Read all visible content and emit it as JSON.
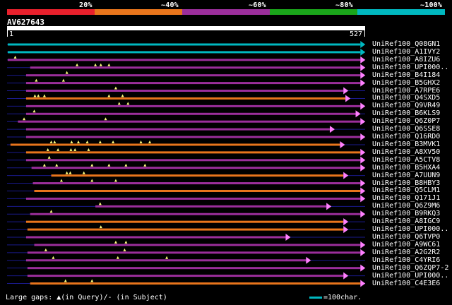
{
  "legend": {
    "labels": [
      "20%",
      "~40%",
      "~60%",
      "~80%",
      "~100%"
    ],
    "colors": [
      "#e8202c",
      "#e8751c",
      "#9b2e9b",
      "#1aa51a",
      "#00b8c0"
    ]
  },
  "query": {
    "id": "AV627643",
    "start": "1",
    "end": "527"
  },
  "colors": {
    "cyan": "#00b8c0",
    "purple": "#9b2e9b",
    "orange": "#e8751c",
    "gap_line": "#1a1a8c",
    "marker": "#ffff80",
    "arrow": "#ff80ff"
  },
  "hits": [
    {
      "label": "UniRef100_Q08GN1",
      "c": "cyan",
      "s": 1,
      "e": 520
    },
    {
      "label": "UniRef100_A1IVY2",
      "c": "cyan",
      "s": 1,
      "e": 520
    },
    {
      "label": "UniRef100_A8IZU6",
      "c": "purple",
      "s": 1,
      "e": 520,
      "m": [
        12
      ]
    },
    {
      "label": "UniRef100_UPI000..",
      "c": "purple",
      "s": 34,
      "e": 520,
      "m": [
        130,
        138,
        150,
        103
      ]
    },
    {
      "label": "UniRef100_B4I184",
      "c": "purple",
      "s": 28,
      "e": 520,
      "m": [
        88
      ]
    },
    {
      "label": "UniRef100_B5GHX2",
      "c": "purple",
      "s": 28,
      "e": 520,
      "m": [
        43,
        83
      ]
    },
    {
      "label": "UniRef100_A7RPE6",
      "c": "purple",
      "s": 28,
      "e": 495,
      "m": [
        160
      ]
    },
    {
      "label": "UniRef100_Q4SXD5",
      "c": "orange",
      "s": 28,
      "e": 498,
      "m": [
        41,
        46,
        55,
        150,
        170
      ]
    },
    {
      "label": "UniRef100_Q9VR49",
      "c": "purple",
      "s": 28,
      "e": 520,
      "m": [
        165,
        178
      ]
    },
    {
      "label": "UniRef100_B6KLS9",
      "c": "purple",
      "s": 28,
      "e": 513,
      "m": [
        40
      ]
    },
    {
      "label": "UniRef100_Q6Z0P7",
      "c": "purple",
      "s": 16,
      "e": 520,
      "m": [
        25,
        145
      ]
    },
    {
      "label": "UniRef100_Q6SSE8",
      "c": "purple",
      "s": 28,
      "e": 475
    },
    {
      "label": "UniRef100_Q16RD0",
      "c": "purple",
      "s": 28,
      "e": 520
    },
    {
      "label": "UniRef100_B3MVK1",
      "c": "orange",
      "s": 5,
      "e": 490,
      "m": [
        65,
        70,
        95,
        105,
        118,
        137,
        156,
        197,
        210
      ]
    },
    {
      "label": "UniRef100_A8XV50",
      "c": "orange",
      "s": 28,
      "e": 520,
      "m": [
        60,
        75,
        94,
        100,
        120
      ]
    },
    {
      "label": "UniRef100_A5CTV8",
      "c": "purple",
      "s": 28,
      "e": 520,
      "m": [
        62
      ]
    },
    {
      "label": "UniRef100_B5HXA4",
      "c": "purple",
      "s": 36,
      "e": 520,
      "m": [
        55,
        73,
        125,
        150,
        175,
        203
      ]
    },
    {
      "label": "UniRef100_A7UUN9",
      "c": "orange",
      "s": 65,
      "e": 495,
      "m": [
        88,
        93,
        113
      ]
    },
    {
      "label": "UniRef100_B8HBY3",
      "c": "purple",
      "s": 38,
      "e": 520,
      "m": [
        80,
        125,
        160
      ]
    },
    {
      "label": "UniRef100_Q5CLM1",
      "c": "orange",
      "s": 40,
      "e": 520
    },
    {
      "label": "UniRef100_Q171J1",
      "c": "purple",
      "s": 28,
      "e": 520
    },
    {
      "label": "UniRef100_Q6Z9M6",
      "c": "purple",
      "s": 130,
      "e": 470,
      "m": [
        137
      ]
    },
    {
      "label": "UniRef100_B9RKQ3",
      "c": "purple",
      "s": 34,
      "e": 520,
      "m": [
        65
      ]
    },
    {
      "label": "UniRef100_A8IGC9",
      "c": "orange",
      "s": 28,
      "e": 495
    },
    {
      "label": "UniRef100_UPI000..",
      "c": "orange",
      "s": 30,
      "e": 495,
      "m": [
        138
      ]
    },
    {
      "label": "UniRef100_Q6TVP0",
      "c": "purple",
      "s": 28,
      "e": 410
    },
    {
      "label": "UniRef100_A9WC61",
      "c": "purple",
      "s": 40,
      "e": 520,
      "m": [
        160,
        175
      ]
    },
    {
      "label": "UniRef100_A2G2R2",
      "c": "purple",
      "s": 30,
      "e": 520,
      "m": [
        57,
        173
      ]
    },
    {
      "label": "UniRef100_C4YRI6",
      "c": "purple",
      "s": 28,
      "e": 440,
      "m": [
        68,
        163,
        235
      ]
    },
    {
      "label": "UniRef100_Q6ZQP7-2",
      "c": "purple",
      "s": 30,
      "e": 520
    },
    {
      "label": "UniRef100_UPI000..",
      "c": "purple",
      "s": 30,
      "e": 495
    },
    {
      "label": "UniRef100_C4E3E6",
      "c": "orange",
      "s": 34,
      "e": 520,
      "m": [
        86,
        125
      ]
    }
  ],
  "footer": {
    "text": "Large gaps: ▲(in Query)/- (in Subject)",
    "scale": "=100char."
  }
}
